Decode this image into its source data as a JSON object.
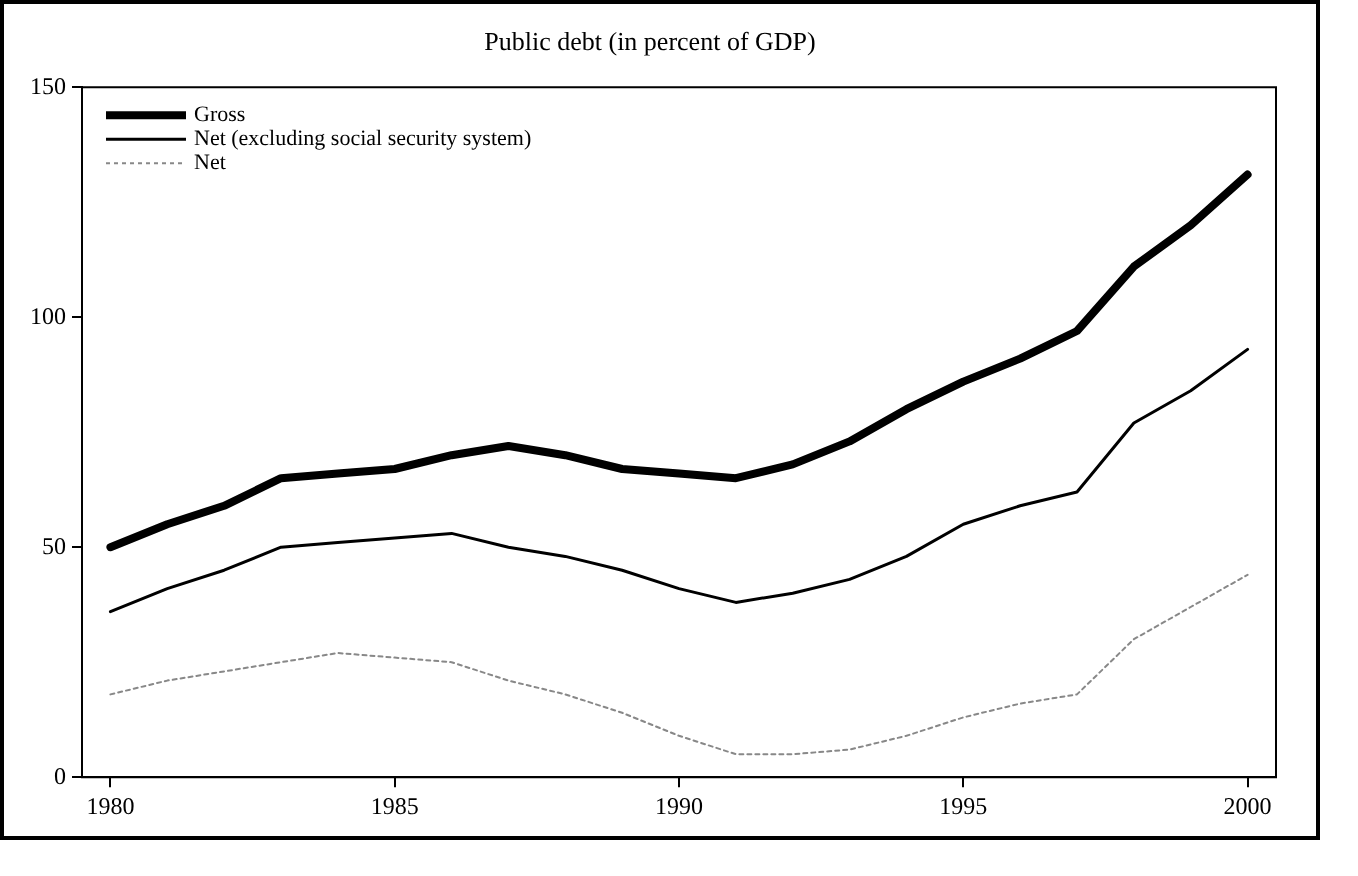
{
  "chart_data": {
    "type": "line",
    "title": "Public debt (in percent of GDP)",
    "x": [
      1980,
      1981,
      1982,
      1983,
      1984,
      1985,
      1986,
      1987,
      1988,
      1989,
      1990,
      1991,
      1992,
      1993,
      1994,
      1995,
      1996,
      1997,
      1998,
      1999,
      2000
    ],
    "series": [
      {
        "name": "Gross",
        "color": "#000000",
        "line_style": "solid",
        "values": [
          50,
          55,
          59,
          65,
          66,
          67,
          70,
          72,
          70,
          67,
          66,
          65,
          68,
          73,
          80,
          86,
          91,
          97,
          111,
          120,
          131
        ]
      },
      {
        "name": "Net (excluding social security system)",
        "color": "#000000",
        "line_style": "solid",
        "values": [
          36,
          41,
          45,
          50,
          51,
          52,
          53,
          50,
          48,
          45,
          41,
          38,
          40,
          43,
          48,
          55,
          59,
          62,
          77,
          84,
          93
        ]
      },
      {
        "name": "Net",
        "color": "#888888",
        "line_style": "dotted",
        "values": [
          18,
          21,
          23,
          25,
          27,
          26,
          25,
          21,
          18,
          14,
          9,
          5,
          5,
          6,
          9,
          13,
          16,
          18,
          30,
          37,
          44
        ]
      }
    ],
    "xlim": [
      1979.5,
      2000.5
    ],
    "xticks": [
      1980,
      1985,
      1990,
      1995,
      2000
    ],
    "ylim": [
      0,
      150
    ],
    "yticks": [
      0,
      50,
      100,
      150
    ],
    "grid": false,
    "legend": "top left",
    "marker": "none"
  }
}
